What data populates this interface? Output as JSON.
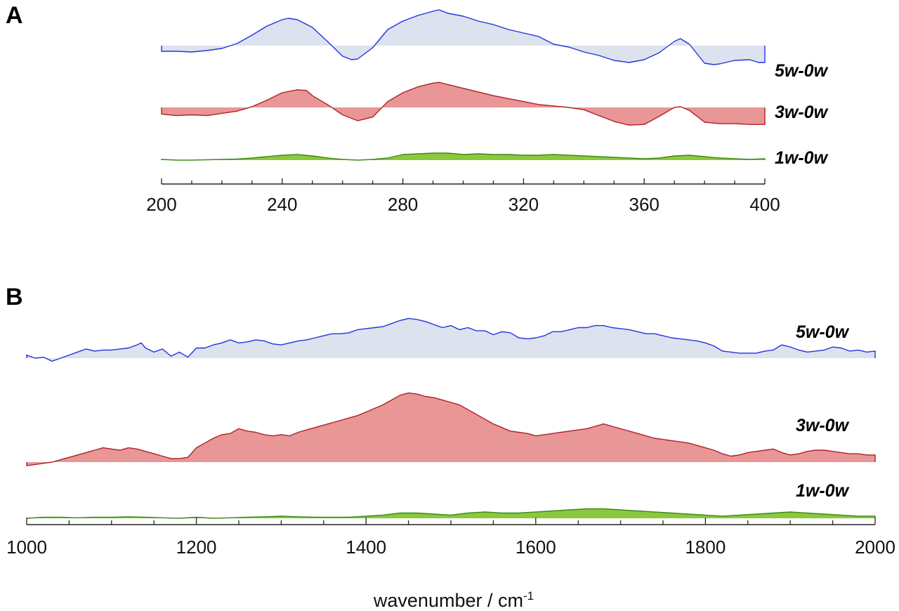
{
  "chart_data": [
    {
      "panel": "A",
      "type": "area",
      "xlim": [
        200,
        400
      ],
      "x_ticks": [
        200,
        240,
        280,
        320,
        360,
        400
      ],
      "minor_tick_step": 10,
      "xlabel": "",
      "series": [
        {
          "name": "5w-0w",
          "color": "#2233dd",
          "fill": "#dce2ee",
          "x": [
            200,
            205,
            210,
            215,
            220,
            225,
            230,
            235,
            240,
            242,
            245,
            250,
            255,
            260,
            263,
            265,
            270,
            275,
            280,
            285,
            290,
            292,
            295,
            300,
            305,
            310,
            315,
            320,
            325,
            330,
            335,
            340,
            345,
            350,
            355,
            360,
            365,
            370,
            372,
            375,
            380,
            383,
            385,
            390,
            395,
            398,
            400
          ],
          "values": [
            -0.8,
            -0.8,
            -0.9,
            -0.7,
            -0.4,
            0.3,
            1.5,
            2.8,
            3.7,
            3.9,
            3.7,
            2.6,
            0.6,
            -1.5,
            -2.0,
            -1.9,
            -0.3,
            2.3,
            3.5,
            4.3,
            4.9,
            5.1,
            4.6,
            4.2,
            3.5,
            3.0,
            2.3,
            1.8,
            1.3,
            0.2,
            -0.2,
            -0.9,
            -1.4,
            -2.1,
            -2.4,
            -2.0,
            -1.0,
            0.6,
            1.0,
            0.2,
            -2.5,
            -2.7,
            -2.6,
            -2.1,
            -2.0,
            -2.4,
            -2.4
          ]
        },
        {
          "name": "3w-0w",
          "color": "#b0202a",
          "fill": "#e89696",
          "x": [
            200,
            205,
            210,
            215,
            220,
            225,
            230,
            235,
            240,
            245,
            248,
            250,
            255,
            260,
            265,
            270,
            275,
            280,
            285,
            290,
            292,
            295,
            300,
            305,
            310,
            315,
            320,
            325,
            330,
            335,
            340,
            345,
            350,
            355,
            360,
            365,
            370,
            372,
            375,
            380,
            385,
            390,
            395,
            400
          ],
          "values": [
            -0.9,
            -1.1,
            -1.0,
            -1.1,
            -0.8,
            -0.5,
            0.1,
            1.0,
            2.0,
            2.4,
            2.3,
            1.6,
            0.4,
            -1.0,
            -1.8,
            -1.3,
            0.8,
            2.0,
            2.8,
            3.3,
            3.4,
            3.1,
            2.6,
            2.1,
            1.6,
            1.2,
            0.8,
            0.4,
            0.2,
            0.0,
            -0.3,
            -1.1,
            -1.9,
            -2.4,
            -2.3,
            -1.2,
            0.0,
            0.1,
            -0.4,
            -2.0,
            -2.2,
            -2.2,
            -2.3,
            -2.3
          ]
        },
        {
          "name": "1w-0w",
          "color": "#3e8a18",
          "fill": "#8cc83c",
          "x": [
            200,
            205,
            210,
            215,
            220,
            225,
            230,
            235,
            240,
            245,
            250,
            255,
            260,
            265,
            270,
            275,
            280,
            285,
            290,
            295,
            300,
            305,
            310,
            315,
            320,
            325,
            330,
            335,
            340,
            345,
            350,
            355,
            360,
            365,
            370,
            375,
            380,
            385,
            390,
            395,
            400
          ],
          "values": [
            0.1,
            0.0,
            0.0,
            0.05,
            0.1,
            0.15,
            0.3,
            0.5,
            0.7,
            0.8,
            0.6,
            0.3,
            0.1,
            0.0,
            0.1,
            0.3,
            0.8,
            0.9,
            1.0,
            1.0,
            0.8,
            0.9,
            0.8,
            0.8,
            0.7,
            0.7,
            0.8,
            0.7,
            0.6,
            0.5,
            0.4,
            0.3,
            0.2,
            0.3,
            0.6,
            0.7,
            0.5,
            0.3,
            0.2,
            0.1,
            0.2
          ]
        }
      ]
    },
    {
      "panel": "B",
      "type": "area",
      "xlim": [
        1000,
        2000
      ],
      "x_ticks": [
        1000,
        1200,
        1400,
        1600,
        1800,
        2000
      ],
      "minor_tick_step": 50,
      "xlabel": "wavenumber / cm",
      "xlabel_superscript": "-1",
      "series": [
        {
          "name": "5w-0w",
          "color": "#2233dd",
          "fill": "#dce2ee",
          "x": [
            1000,
            1010,
            1020,
            1030,
            1040,
            1050,
            1060,
            1070,
            1080,
            1090,
            1100,
            1110,
            1120,
            1130,
            1135,
            1140,
            1150,
            1160,
            1170,
            1180,
            1190,
            1200,
            1210,
            1220,
            1230,
            1240,
            1250,
            1260,
            1270,
            1280,
            1290,
            1300,
            1310,
            1320,
            1330,
            1340,
            1350,
            1360,
            1370,
            1380,
            1390,
            1400,
            1410,
            1420,
            1430,
            1440,
            1450,
            1460,
            1470,
            1480,
            1490,
            1500,
            1510,
            1520,
            1530,
            1540,
            1550,
            1560,
            1570,
            1580,
            1590,
            1600,
            1610,
            1620,
            1630,
            1640,
            1650,
            1660,
            1670,
            1680,
            1690,
            1700,
            1710,
            1720,
            1730,
            1740,
            1750,
            1760,
            1770,
            1780,
            1790,
            1800,
            1810,
            1820,
            1830,
            1840,
            1850,
            1860,
            1870,
            1880,
            1890,
            1900,
            1910,
            1920,
            1930,
            1940,
            1950,
            1960,
            1970,
            1980,
            1990,
            2000
          ],
          "values": [
            0.3,
            0.0,
            0.1,
            -0.3,
            0.0,
            0.3,
            0.6,
            0.9,
            0.7,
            0.8,
            0.8,
            0.9,
            1.0,
            1.3,
            1.5,
            1.0,
            0.6,
            0.9,
            0.2,
            0.6,
            0.1,
            1.0,
            1.0,
            1.3,
            1.5,
            1.8,
            1.5,
            1.6,
            1.8,
            1.7,
            1.4,
            1.3,
            1.5,
            1.7,
            1.8,
            2.0,
            2.2,
            2.4,
            2.4,
            2.5,
            2.8,
            2.9,
            3.0,
            3.1,
            3.4,
            3.7,
            3.9,
            3.8,
            3.6,
            3.3,
            3.0,
            3.2,
            2.8,
            3.0,
            2.7,
            2.7,
            2.3,
            2.6,
            2.5,
            2.0,
            1.9,
            2.0,
            2.2,
            2.6,
            2.6,
            2.8,
            3.0,
            3.0,
            3.2,
            3.2,
            3.0,
            2.9,
            2.8,
            2.6,
            2.4,
            2.4,
            2.2,
            2.0,
            1.9,
            1.8,
            1.7,
            1.5,
            1.2,
            0.7,
            0.6,
            0.5,
            0.5,
            0.5,
            0.7,
            0.8,
            1.3,
            1.1,
            0.8,
            0.6,
            0.7,
            0.8,
            1.1,
            1.0,
            0.7,
            0.8,
            0.6,
            0.7
          ]
        },
        {
          "name": "3w-0w",
          "color": "#b0202a",
          "fill": "#e89696",
          "x": [
            1000,
            1010,
            1020,
            1030,
            1040,
            1050,
            1060,
            1070,
            1080,
            1090,
            1100,
            1110,
            1120,
            1130,
            1140,
            1150,
            1160,
            1170,
            1180,
            1190,
            1200,
            1210,
            1220,
            1230,
            1240,
            1250,
            1260,
            1270,
            1280,
            1290,
            1300,
            1310,
            1320,
            1330,
            1340,
            1350,
            1360,
            1370,
            1380,
            1390,
            1400,
            1410,
            1420,
            1430,
            1440,
            1450,
            1460,
            1470,
            1480,
            1490,
            1500,
            1510,
            1520,
            1530,
            1540,
            1550,
            1560,
            1570,
            1580,
            1590,
            1600,
            1610,
            1620,
            1630,
            1640,
            1650,
            1660,
            1670,
            1680,
            1690,
            1700,
            1710,
            1720,
            1730,
            1740,
            1750,
            1760,
            1770,
            1780,
            1790,
            1800,
            1810,
            1820,
            1830,
            1840,
            1850,
            1860,
            1870,
            1880,
            1890,
            1900,
            1910,
            1920,
            1930,
            1940,
            1950,
            1960,
            1970,
            1980,
            1990,
            2000
          ],
          "values": [
            -0.3,
            -0.2,
            -0.1,
            0.0,
            0.2,
            0.4,
            0.6,
            0.8,
            1.0,
            1.2,
            1.1,
            1.0,
            1.2,
            1.1,
            0.9,
            0.7,
            0.5,
            0.3,
            0.3,
            0.4,
            1.2,
            1.6,
            2.0,
            2.3,
            2.4,
            2.8,
            2.6,
            2.5,
            2.3,
            2.2,
            2.3,
            2.2,
            2.5,
            2.7,
            2.9,
            3.1,
            3.3,
            3.5,
            3.7,
            3.9,
            4.2,
            4.5,
            4.8,
            5.2,
            5.6,
            5.8,
            5.7,
            5.5,
            5.4,
            5.2,
            5.0,
            4.8,
            4.4,
            4.0,
            3.6,
            3.2,
            2.9,
            2.6,
            2.5,
            2.4,
            2.2,
            2.3,
            2.4,
            2.5,
            2.6,
            2.7,
            2.8,
            3.0,
            3.2,
            3.0,
            2.8,
            2.6,
            2.4,
            2.2,
            2.0,
            1.9,
            1.8,
            1.7,
            1.6,
            1.4,
            1.2,
            1.0,
            0.7,
            0.5,
            0.6,
            0.8,
            0.9,
            1.0,
            1.1,
            0.8,
            0.6,
            0.7,
            0.9,
            1.0,
            1.0,
            0.9,
            0.8,
            0.7,
            0.7,
            0.6,
            0.6
          ]
        },
        {
          "name": "1w-0w",
          "color": "#3e8a18",
          "fill": "#8cc83c",
          "x": [
            1000,
            1020,
            1040,
            1060,
            1080,
            1100,
            1120,
            1140,
            1160,
            1180,
            1200,
            1220,
            1240,
            1260,
            1280,
            1300,
            1320,
            1340,
            1360,
            1380,
            1400,
            1420,
            1440,
            1460,
            1480,
            1500,
            1520,
            1540,
            1560,
            1580,
            1600,
            1620,
            1640,
            1660,
            1680,
            1700,
            1720,
            1740,
            1760,
            1780,
            1800,
            1820,
            1840,
            1860,
            1880,
            1900,
            1920,
            1940,
            1960,
            1980,
            2000
          ],
          "values": [
            0.0,
            0.1,
            0.1,
            0.05,
            0.1,
            0.1,
            0.15,
            0.1,
            0.05,
            0.0,
            0.1,
            0.0,
            0.05,
            0.1,
            0.15,
            0.2,
            0.15,
            0.1,
            0.1,
            0.1,
            0.2,
            0.3,
            0.5,
            0.5,
            0.4,
            0.3,
            0.5,
            0.6,
            0.5,
            0.5,
            0.6,
            0.7,
            0.8,
            0.9,
            0.9,
            0.8,
            0.7,
            0.6,
            0.5,
            0.4,
            0.3,
            0.2,
            0.3,
            0.4,
            0.5,
            0.6,
            0.5,
            0.4,
            0.3,
            0.2,
            0.2
          ]
        }
      ]
    }
  ]
}
